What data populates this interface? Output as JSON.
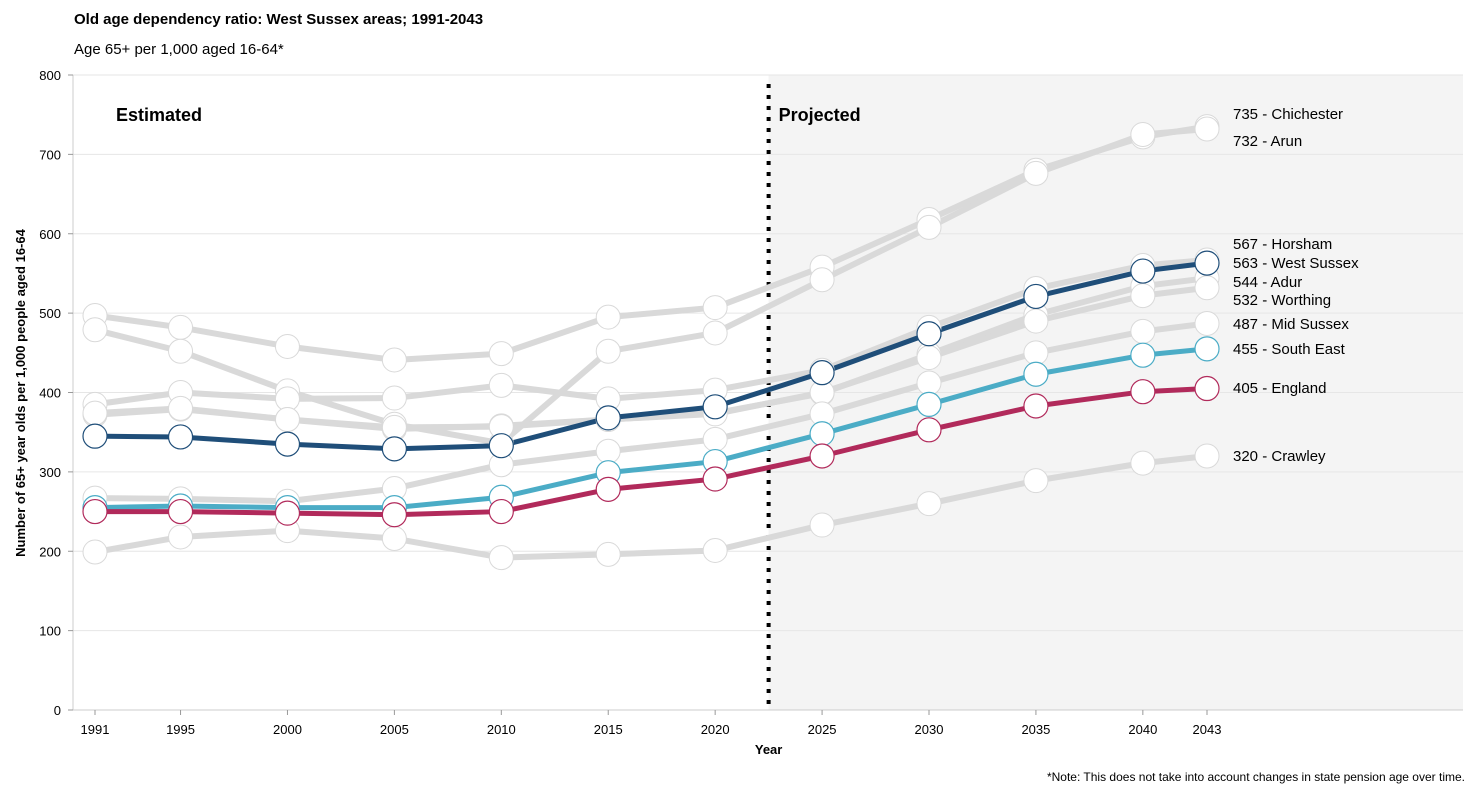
{
  "title": "Old age dependency ratio: West Sussex areas; 1991-2043",
  "subtitle": "Age 65+ per 1,000 aged 16-64*",
  "note": "*Note: This does not take into account changes in state pension age over time.",
  "chart_data": {
    "type": "line",
    "xlabel": "Year",
    "ylabel": "Number of 65+ year olds per 1,000 people aged 16-64",
    "x": [
      1991,
      1995,
      2000,
      2005,
      2010,
      2015,
      2020,
      2025,
      2030,
      2035,
      2040,
      2043
    ],
    "xlim": [
      1990,
      2055
    ],
    "ylim": [
      0,
      800
    ],
    "yticks": [
      0,
      100,
      200,
      300,
      400,
      500,
      600,
      700,
      800
    ],
    "grid": true,
    "projection_start": 2022.5,
    "region_labels": {
      "estimated": "Estimated",
      "projected": "Projected"
    },
    "colors": {
      "background_projected": "#f4f4f4",
      "grid": "#e6e6e6",
      "grey_series": "#d9d9d9",
      "west_sussex": "#1f4e79",
      "south_east": "#4bacc6",
      "england": "#b12a5b"
    },
    "series": [
      {
        "name": "Chichester",
        "highlight": false,
        "end_value": 735,
        "values": [
          497,
          482,
          458,
          441,
          449,
          495,
          507,
          558,
          618,
          680,
          722,
          735
        ]
      },
      {
        "name": "Arun",
        "highlight": false,
        "end_value": 732,
        "values": [
          479,
          452,
          402,
          360,
          336,
          452,
          475,
          542,
          608,
          676,
          725,
          732
        ]
      },
      {
        "name": "Horsham",
        "highlight": false,
        "end_value": 567,
        "values": [
          385,
          400,
          392,
          393,
          409,
          392,
          403,
          428,
          482,
          531,
          560,
          567
        ]
      },
      {
        "name": "Adur",
        "highlight": false,
        "end_value": 544,
        "values": [
          372,
          379,
          366,
          354,
          358,
          366,
          374,
          399,
          448,
          498,
          534,
          544
        ]
      },
      {
        "name": "Worthing",
        "highlight": false,
        "end_value": 532,
        "values": [
          374,
          380,
          366,
          356,
          357,
          366,
          373,
          400,
          444,
          490,
          522,
          532
        ]
      },
      {
        "name": "Mid Sussex",
        "highlight": false,
        "end_value": 487,
        "values": [
          267,
          266,
          263,
          279,
          309,
          326,
          341,
          373,
          412,
          450,
          477,
          487
        ]
      },
      {
        "name": "Crawley",
        "highlight": false,
        "end_value": 320,
        "values": [
          199,
          218,
          226,
          216,
          192,
          196,
          201,
          233,
          260,
          289,
          311,
          320
        ]
      },
      {
        "name": "West Sussex",
        "highlight": true,
        "color": "#1f4e79",
        "end_value": 563,
        "values": [
          345,
          344,
          335,
          329,
          333,
          368,
          382,
          425,
          474,
          521,
          553,
          563
        ]
      },
      {
        "name": "South East",
        "highlight": true,
        "color": "#4bacc6",
        "end_value": 455,
        "values": [
          255,
          257,
          255,
          255,
          268,
          299,
          313,
          348,
          385,
          423,
          447,
          455
        ]
      },
      {
        "name": "England",
        "highlight": true,
        "color": "#b12a5b",
        "end_value": 405,
        "values": [
          250,
          250,
          248,
          246,
          250,
          278,
          291,
          320,
          353,
          383,
          401,
          405
        ]
      }
    ],
    "end_labels": [
      "735 - Chichester",
      "732 - Arun",
      "567 - Horsham",
      "563 - West Sussex",
      "544 - Adur",
      "532 - Worthing",
      "487 - Mid Sussex",
      "455 - South East",
      "405 - England",
      "320 - Crawley"
    ]
  }
}
